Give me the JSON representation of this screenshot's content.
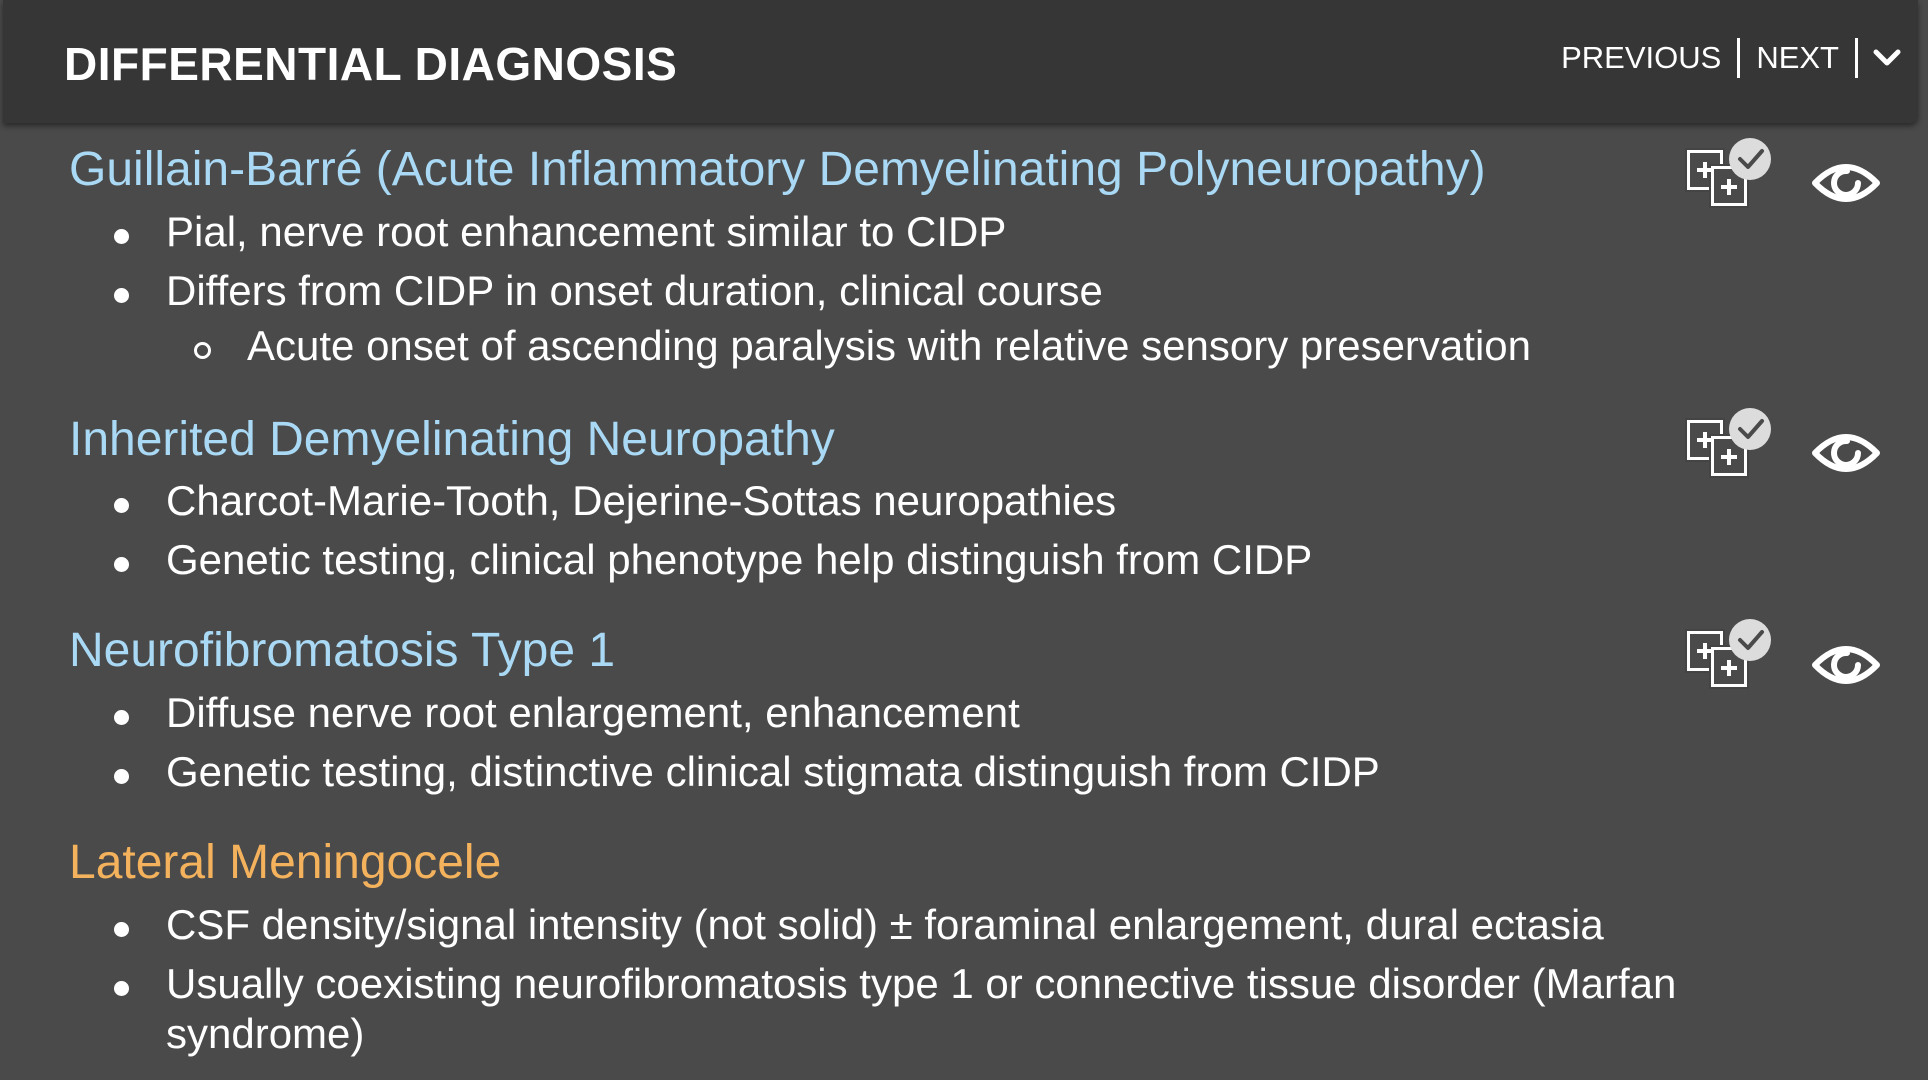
{
  "header": {
    "title": "DIFFERENTIAL DIAGNOSIS",
    "previous_label": "PREVIOUS",
    "next_label": "NEXT"
  },
  "items": [
    {
      "title": "Guillain-Barré (Acute Inflammatory Demyelinating Polyneuropathy)",
      "linked": true,
      "bullets": [
        "Pial, nerve root enhancement similar to CIDP",
        "Differs from CIDP in onset duration, clinical course"
      ],
      "sub_bullets": [
        "Acute onset of ascending paralysis with relative sensory preservation"
      ]
    },
    {
      "title": "Inherited Demyelinating Neuropathy",
      "linked": true,
      "bullets": [
        "Charcot-Marie-Tooth, Dejerine-Sottas neuropathies",
        "Genetic testing, clinical phenotype help distinguish from CIDP"
      ]
    },
    {
      "title": "Neurofibromatosis Type 1",
      "linked": true,
      "bullets": [
        "Diffuse nerve root enlargement, enhancement",
        "Genetic testing, distinctive clinical stigmata distinguish from CIDP"
      ]
    },
    {
      "title": "Lateral Meningocele",
      "linked": false,
      "bullets": [
        "CSF density/signal intensity (not solid) ± foraminal enlargement, dural ectasia",
        "Usually coexisting neurofibromatosis type 1 or connective tissue disorder (Marfan",
        "syndrome)"
      ]
    }
  ],
  "icons": {
    "compare": "compare-images-icon",
    "view": "eye-icon",
    "dropdown": "chevron-down-icon"
  },
  "colors": {
    "background": "#4a4a4a",
    "header_background": "#363636",
    "link_title": "#a9d9f4",
    "plain_title": "#f4b25d",
    "text": "#ffffff"
  }
}
